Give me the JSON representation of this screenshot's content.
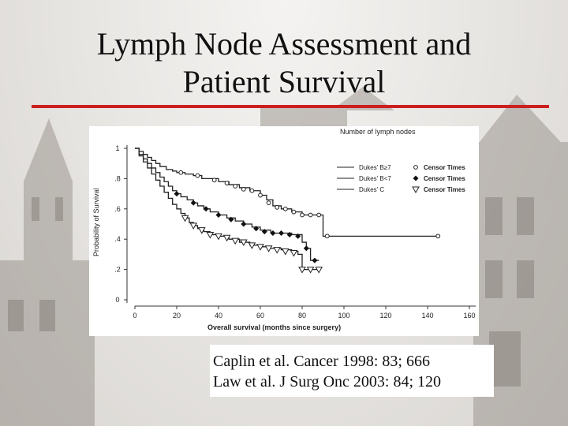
{
  "slide": {
    "title_line1": "Lymph Node Assessment and",
    "title_line2": "Patient Survival",
    "accent_color": "#cc1f1f"
  },
  "citation": {
    "line1": "Caplin et al. Cancer 1998: 83; 666",
    "line2": "Law et al. J Surg Onc 2003: 84; 120"
  },
  "chart_data": {
    "type": "line",
    "title": "Number of lymph nodes",
    "xlabel": "Overall survival (months since surgery)",
    "ylabel": "Probability of Survival",
    "xlim": [
      0,
      160
    ],
    "ylim": [
      0,
      1
    ],
    "x_ticks": [
      "0",
      "20",
      "40",
      "60",
      "80",
      "100",
      "120",
      "140",
      "160"
    ],
    "y_ticks": [
      "0",
      ".2",
      ".4",
      ".6",
      ".8",
      "1"
    ],
    "x_tick_values": [
      0,
      20,
      40,
      60,
      80,
      100,
      120,
      140,
      160
    ],
    "y_tick_values": [
      0,
      0.2,
      0.4,
      0.6,
      0.8,
      1
    ],
    "grid": false,
    "legend_position": "top-right",
    "series": [
      {
        "name": "Dukes' B≥7",
        "censor_label": "Censor Times",
        "marker": "circle",
        "x": [
          0,
          2,
          4,
          6,
          8,
          10,
          12,
          15,
          18,
          20,
          24,
          28,
          32,
          36,
          40,
          45,
          50,
          55,
          60,
          63,
          66,
          70,
          75,
          80,
          88,
          90,
          145
        ],
        "y": [
          1.0,
          0.98,
          0.96,
          0.94,
          0.92,
          0.9,
          0.88,
          0.86,
          0.85,
          0.84,
          0.83,
          0.82,
          0.8,
          0.8,
          0.78,
          0.76,
          0.74,
          0.72,
          0.69,
          0.66,
          0.62,
          0.6,
          0.58,
          0.56,
          0.56,
          0.42,
          0.42
        ],
        "censor_x": [
          22,
          30,
          38,
          44,
          48,
          52,
          56,
          60,
          64,
          68,
          72,
          76,
          80,
          84,
          88,
          92,
          145
        ],
        "censor_y": [
          0.84,
          0.82,
          0.79,
          0.77,
          0.75,
          0.73,
          0.72,
          0.69,
          0.64,
          0.61,
          0.6,
          0.58,
          0.56,
          0.56,
          0.56,
          0.42,
          0.42
        ]
      },
      {
        "name": "Dukes' B<7",
        "censor_label": "Censor Times",
        "marker": "diamond",
        "x": [
          0,
          2,
          4,
          6,
          8,
          10,
          12,
          14,
          16,
          18,
          20,
          22,
          25,
          28,
          30,
          33,
          36,
          40,
          44,
          48,
          52,
          56,
          60,
          65,
          70,
          75,
          80,
          82,
          84,
          88
        ],
        "y": [
          1.0,
          0.96,
          0.93,
          0.9,
          0.87,
          0.84,
          0.81,
          0.78,
          0.75,
          0.72,
          0.7,
          0.68,
          0.66,
          0.64,
          0.62,
          0.6,
          0.58,
          0.56,
          0.54,
          0.52,
          0.5,
          0.48,
          0.46,
          0.44,
          0.44,
          0.43,
          0.38,
          0.34,
          0.26,
          0.26
        ],
        "censor_x": [
          20,
          28,
          34,
          40,
          46,
          52,
          58,
          62,
          66,
          70,
          74,
          78,
          82,
          86
        ],
        "censor_y": [
          0.7,
          0.64,
          0.6,
          0.56,
          0.53,
          0.5,
          0.47,
          0.45,
          0.44,
          0.44,
          0.43,
          0.42,
          0.34,
          0.26
        ]
      },
      {
        "name": "Dukes' C",
        "censor_label": "Censor Times",
        "marker": "triangle",
        "x": [
          0,
          2,
          4,
          6,
          8,
          10,
          12,
          14,
          16,
          18,
          20,
          22,
          24,
          26,
          28,
          30,
          33,
          36,
          40,
          45,
          50,
          55,
          60,
          65,
          70,
          75,
          78,
          80,
          84,
          88
        ],
        "y": [
          1.0,
          0.95,
          0.91,
          0.87,
          0.83,
          0.79,
          0.75,
          0.71,
          0.67,
          0.63,
          0.6,
          0.57,
          0.54,
          0.51,
          0.49,
          0.47,
          0.45,
          0.43,
          0.42,
          0.4,
          0.38,
          0.36,
          0.35,
          0.34,
          0.33,
          0.32,
          0.3,
          0.2,
          0.2,
          0.2
        ],
        "censor_x": [
          24,
          28,
          32,
          36,
          40,
          44,
          48,
          52,
          56,
          60,
          64,
          68,
          72,
          76,
          80,
          84,
          88
        ],
        "censor_y": [
          0.54,
          0.49,
          0.46,
          0.43,
          0.42,
          0.41,
          0.39,
          0.38,
          0.36,
          0.35,
          0.34,
          0.33,
          0.32,
          0.31,
          0.2,
          0.2,
          0.2
        ]
      }
    ]
  }
}
